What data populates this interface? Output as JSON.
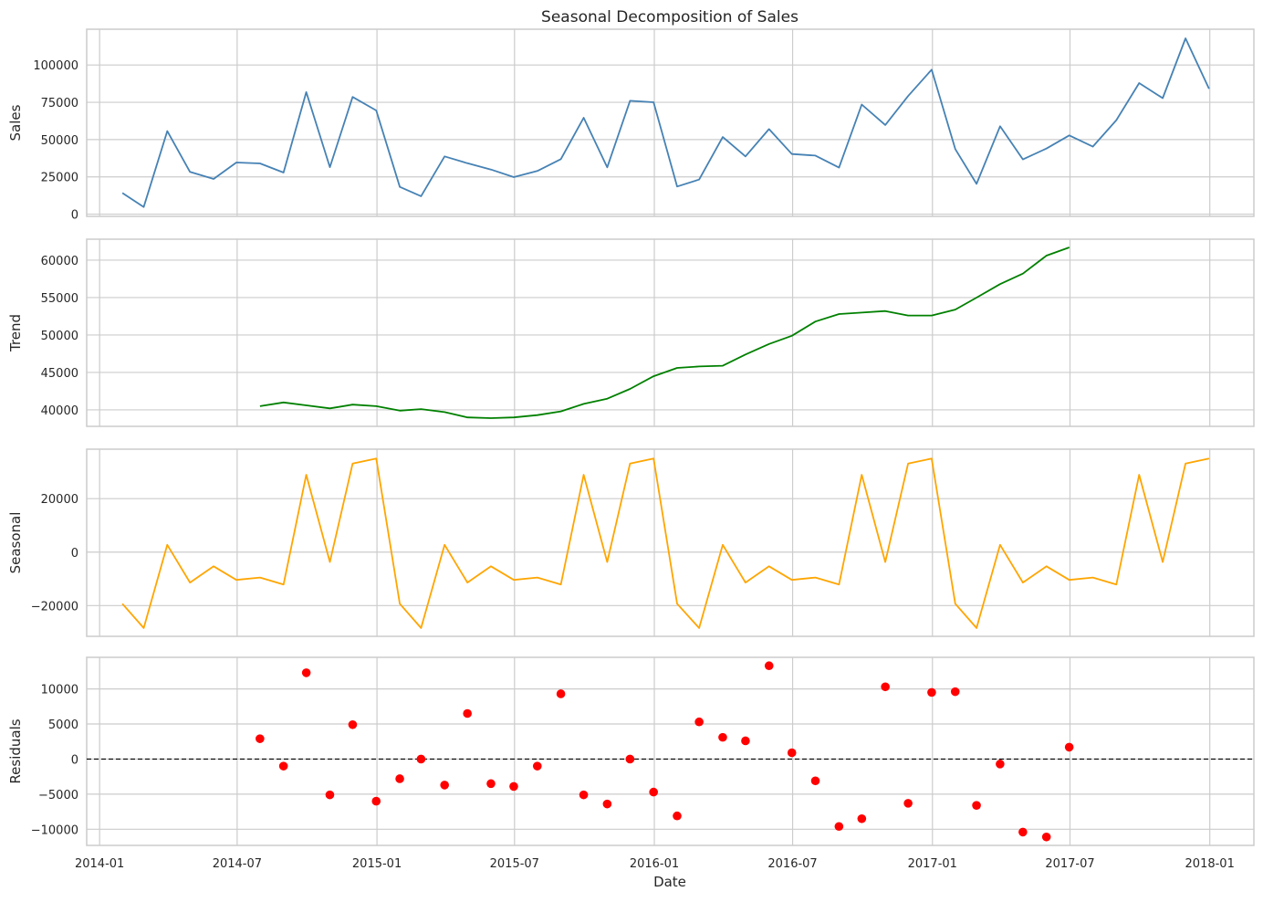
{
  "chart_data": {
    "type": "line",
    "title": "Seasonal Decomposition of Sales",
    "xlabel": "Date",
    "x_tick_labels": [
      "2014-01",
      "2014-07",
      "2015-01",
      "2015-07",
      "2016-01",
      "2016-07",
      "2017-01",
      "2017-07",
      "2018-01"
    ],
    "x_range": [
      "2013-12-15",
      "2018-02-28"
    ],
    "grid": true,
    "dates": [
      "2014-01-31",
      "2014-02-28",
      "2014-03-31",
      "2014-04-30",
      "2014-05-31",
      "2014-06-30",
      "2014-07-31",
      "2014-08-31",
      "2014-09-30",
      "2014-10-31",
      "2014-11-30",
      "2014-12-31",
      "2015-01-31",
      "2015-02-28",
      "2015-03-31",
      "2015-04-30",
      "2015-05-31",
      "2015-06-30",
      "2015-07-31",
      "2015-08-31",
      "2015-09-30",
      "2015-10-31",
      "2015-11-30",
      "2015-12-31",
      "2016-01-31",
      "2016-02-29",
      "2016-03-31",
      "2016-04-30",
      "2016-05-31",
      "2016-06-30",
      "2016-07-31",
      "2016-08-31",
      "2016-09-30",
      "2016-10-31",
      "2016-11-30",
      "2016-12-31",
      "2017-01-31",
      "2017-02-28",
      "2017-03-31",
      "2017-04-30",
      "2017-05-31",
      "2017-06-30",
      "2017-07-31",
      "2017-08-31",
      "2017-09-30",
      "2017-10-31",
      "2017-11-30",
      "2017-12-31"
    ],
    "panels": [
      {
        "name": "Sales",
        "ylabel": "Sales",
        "style": "line",
        "color": "#4682b4",
        "ylim": [
          -1500,
          124000
        ],
        "yticks": [
          0,
          25000,
          50000,
          75000,
          100000
        ],
        "ytick_labels": [
          "0",
          "25000",
          "50000",
          "75000",
          "100000"
        ],
        "values": [
          14200,
          4800,
          55700,
          28300,
          23600,
          34600,
          34000,
          27900,
          81800,
          31500,
          78600,
          69500,
          18300,
          12000,
          38700,
          34100,
          29900,
          24800,
          28900,
          36900,
          64600,
          31400,
          76000,
          75000,
          18500,
          23200,
          51700,
          38700,
          57000,
          40300,
          39300,
          31200,
          73500,
          59800,
          79200,
          96900,
          43600,
          20300,
          58900,
          36700,
          44000,
          52800,
          45300,
          63000,
          87900,
          77800,
          117900,
          84000
        ]
      },
      {
        "name": "Trend",
        "ylabel": "Trend",
        "style": "line",
        "color": "#008000",
        "ylim": [
          37800,
          62800
        ],
        "yticks": [
          40000,
          45000,
          50000,
          55000,
          60000
        ],
        "ytick_labels": [
          "40000",
          "45000",
          "50000",
          "55000",
          "60000"
        ],
        "values": [
          null,
          null,
          null,
          null,
          null,
          null,
          40500,
          41000,
          40600,
          40200,
          40700,
          40500,
          39900,
          40100,
          39700,
          39000,
          38900,
          39000,
          39300,
          39800,
          40800,
          41500,
          42800,
          44500,
          45600,
          45800,
          45900,
          47400,
          48800,
          49900,
          51800,
          52800,
          53000,
          53200,
          52600,
          52600,
          53400,
          55000,
          56800,
          58200,
          60600,
          61700,
          null,
          null,
          null,
          null,
          null,
          null
        ]
      },
      {
        "name": "Seasonal",
        "ylabel": "Seasonal",
        "style": "line",
        "color": "#ffa500",
        "ylim": [
          -31500,
          38500
        ],
        "yticks": [
          -20000,
          0,
          20000
        ],
        "ytick_labels": [
          "−20000",
          "0",
          "20000"
        ],
        "values": [
          -19300,
          -28400,
          2700,
          -11400,
          -5300,
          -10400,
          -9500,
          -12100,
          28900,
          -3700,
          33100,
          35000,
          -19300,
          -28400,
          2700,
          -11400,
          -5300,
          -10400,
          -9500,
          -12100,
          28900,
          -3700,
          33100,
          35000,
          -19300,
          -28400,
          2700,
          -11400,
          -5300,
          -10400,
          -9500,
          -12100,
          28900,
          -3700,
          33100,
          35000,
          -19300,
          -28400,
          2700,
          -11400,
          -5300,
          -10400,
          -9500,
          -12100,
          28900,
          -3700,
          33100,
          35000
        ]
      },
      {
        "name": "Residuals",
        "ylabel": "Residuals",
        "style": "scatter",
        "color": "#ff0000",
        "ylim": [
          -12300,
          14500
        ],
        "yticks": [
          -10000,
          -5000,
          0,
          5000,
          10000
        ],
        "ytick_labels": [
          "−10000",
          "−5000",
          "0",
          "5000",
          "10000"
        ],
        "zero_line": true,
        "values": [
          null,
          null,
          null,
          null,
          null,
          null,
          2900,
          -1000,
          12300,
          -5100,
          4900,
          -6000,
          -2800,
          0,
          -3700,
          6500,
          -3500,
          -3900,
          -1000,
          9300,
          -5100,
          -6400,
          0,
          -4700,
          -8100,
          5300,
          3100,
          2600,
          13300,
          900,
          -3100,
          -9600,
          -8500,
          10300,
          -6300,
          9500,
          9600,
          -6600,
          -700,
          -10400,
          -11100,
          1700,
          null,
          null,
          null,
          null,
          null,
          null
        ]
      }
    ]
  }
}
